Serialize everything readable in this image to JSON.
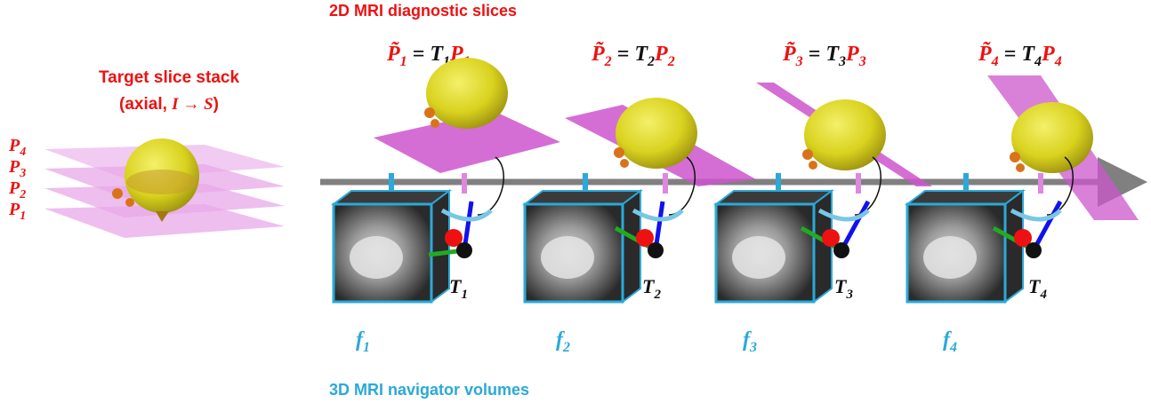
{
  "title_top": "2D MRI diagnostic slices",
  "title_bottom": "3D MRI navigator volumes",
  "target": {
    "line1": "Target slice stack",
    "line2_prefix": "(axial, ",
    "line2_math": "I → S",
    "line2_suffix": ")",
    "plane_labels": [
      {
        "main": "P",
        "sub": "4"
      },
      {
        "main": "P",
        "sub": "3"
      },
      {
        "main": "P",
        "sub": "2"
      },
      {
        "main": "P",
        "sub": "1"
      }
    ]
  },
  "steps": [
    {
      "eq_lhs": "P̃",
      "eq_lhs_sub": "1",
      "eq_T": "T",
      "eq_T_sub": "1",
      "eq_P": "P",
      "eq_P_sub": "1",
      "T_label": "T",
      "T_sub": "1",
      "f_label": "f",
      "f_sub": "1"
    },
    {
      "eq_lhs": "P̃",
      "eq_lhs_sub": "2",
      "eq_T": "T",
      "eq_T_sub": "2",
      "eq_P": "P",
      "eq_P_sub": "2",
      "T_label": "T",
      "T_sub": "2",
      "f_label": "f",
      "f_sub": "2"
    },
    {
      "eq_lhs": "P̃",
      "eq_lhs_sub": "3",
      "eq_T": "T",
      "eq_T_sub": "3",
      "eq_P": "P",
      "eq_P_sub": "3",
      "T_label": "T",
      "T_sub": "3",
      "f_label": "f",
      "f_sub": "3"
    },
    {
      "eq_lhs": "P̃",
      "eq_lhs_sub": "4",
      "eq_T": "T",
      "eq_T_sub": "4",
      "eq_P": "P",
      "eq_P_sub": "4",
      "T_label": "T",
      "T_sub": "4",
      "f_label": "f",
      "f_sub": "4"
    }
  ],
  "colors": {
    "red": "#ee1111",
    "cyan": "#2ba9d8",
    "plane": "#cc55cc",
    "tumor": "#e6e02a",
    "timeline": "#808080",
    "axis_x": "#22aa22",
    "axis_y": "#1111ee",
    "origin": "#111111",
    "origin_red": "#ee1111"
  }
}
